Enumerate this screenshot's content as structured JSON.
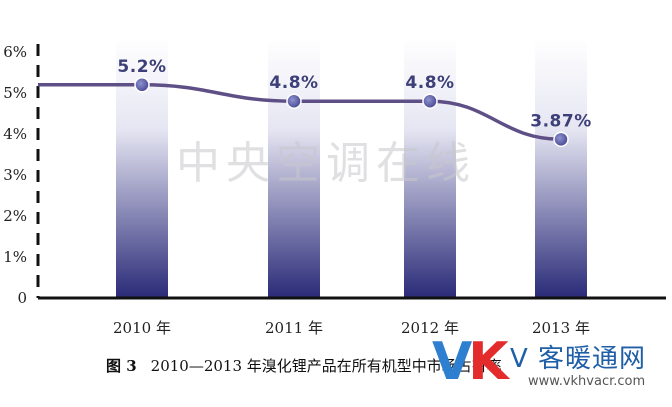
{
  "chart_data": {
    "type": "bar+line",
    "categories": [
      "2010 年",
      "2011 年",
      "2012 年",
      "2013 年"
    ],
    "values": [
      5.2,
      4.8,
      4.8,
      3.87
    ],
    "data_labels": [
      "5.2%",
      "4.8%",
      "4.8%",
      "3.87%"
    ],
    "y_ticks": [
      "0",
      "1%",
      "2%",
      "3%",
      "4%",
      "5%",
      "6%"
    ],
    "ylim": [
      0,
      6
    ],
    "grid": false,
    "bar_color_top": "#ffffff",
    "bar_color_bottom": "#2a2a78",
    "line_color": "#5e4f86",
    "marker_color": "#3d3f8a"
  },
  "watermark": "中央空调在线",
  "caption": {
    "figure_no": "图 3",
    "text": "2010—2013 年溴化锂产品在所有机型中市场占有率"
  },
  "logo": {
    "letters_v": "V",
    "letters_k": "K",
    "name": "V 客暖通网",
    "url": "www.vkhvacr.com"
  }
}
